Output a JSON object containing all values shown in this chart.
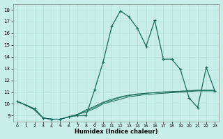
{
  "xlabel": "Humidex (Indice chaleur)",
  "bg_color": "#c8eeea",
  "grid_color": "#b0ddd8",
  "line_color": "#1a6b5a",
  "xlim": [
    -0.5,
    23.5
  ],
  "ylim": [
    8.5,
    18.5
  ],
  "xticks": [
    0,
    1,
    2,
    3,
    4,
    5,
    6,
    7,
    8,
    9,
    10,
    11,
    12,
    13,
    14,
    15,
    16,
    17,
    18,
    19,
    20,
    21,
    22,
    23
  ],
  "yticks": [
    9,
    10,
    11,
    12,
    13,
    14,
    15,
    16,
    17,
    18
  ],
  "curve1_x": [
    0,
    1,
    2,
    3,
    4,
    5,
    6,
    7,
    8,
    9,
    10,
    11,
    12,
    13,
    14,
    15,
    16,
    17,
    18,
    19,
    20,
    21,
    22,
    23
  ],
  "curve1_y": [
    10.2,
    9.9,
    9.6,
    8.8,
    8.7,
    8.7,
    8.9,
    9.0,
    9.0,
    11.2,
    13.6,
    16.6,
    17.9,
    17.4,
    16.4,
    14.9,
    17.1,
    13.8,
    13.8,
    12.9,
    10.5,
    9.7,
    13.1,
    11.1
  ],
  "curve2_x": [
    0,
    1,
    2,
    3,
    4,
    5,
    6,
    7,
    8,
    9,
    10,
    11,
    12,
    13,
    14,
    15,
    16,
    17,
    18,
    19,
    20,
    21,
    22,
    23
  ],
  "curve2_y": [
    10.2,
    9.9,
    9.5,
    8.8,
    8.7,
    8.7,
    8.9,
    9.1,
    9.3,
    9.6,
    10.0,
    10.2,
    10.4,
    10.6,
    10.7,
    10.8,
    10.85,
    10.9,
    10.95,
    11.0,
    11.05,
    11.1,
    11.1,
    11.1
  ],
  "curve3_x": [
    0,
    1,
    2,
    3,
    4,
    5,
    6,
    7,
    8,
    9,
    10,
    11,
    12,
    13,
    14,
    15,
    16,
    17,
    18,
    19,
    20,
    21,
    22,
    23
  ],
  "curve3_y": [
    10.2,
    9.9,
    9.5,
    8.8,
    8.7,
    8.7,
    8.9,
    9.1,
    9.4,
    9.7,
    10.1,
    10.3,
    10.55,
    10.7,
    10.8,
    10.9,
    10.95,
    11.0,
    11.0,
    11.05,
    11.1,
    11.15,
    11.15,
    11.15
  ],
  "curve4_x": [
    0,
    1,
    2,
    3,
    4,
    5,
    6,
    7,
    8,
    9,
    10,
    11,
    12,
    13,
    14,
    15,
    16,
    17,
    18,
    19,
    20,
    21,
    22,
    23
  ],
  "curve4_y": [
    10.2,
    9.9,
    9.5,
    8.8,
    8.7,
    8.7,
    8.9,
    9.1,
    9.5,
    9.8,
    10.15,
    10.4,
    10.6,
    10.75,
    10.85,
    10.9,
    10.97,
    11.02,
    11.05,
    11.08,
    11.12,
    11.18,
    11.18,
    11.18
  ]
}
